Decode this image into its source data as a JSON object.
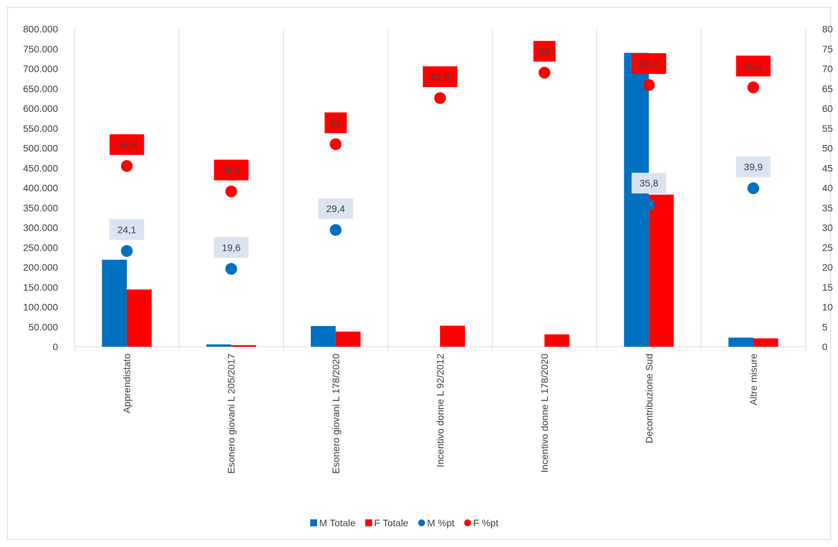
{
  "chart_data": {
    "type": "bar",
    "categories": [
      "Apprendistato",
      "Esonero giovani L 205/2017",
      "Esonero giovani L 178/2020",
      "Incentivo donne L 92/2012",
      "Incentivo donne L 178/2020",
      "Decontribuzione Sud",
      "Altre misure"
    ],
    "y_left": {
      "min": 0,
      "max": 800000,
      "step": 50000,
      "tick_labels": [
        "0",
        "50.000",
        "100.000",
        "150.000",
        "200.000",
        "250.000",
        "300.000",
        "350.000",
        "400.000",
        "450.000",
        "500.000",
        "550.000",
        "600.000",
        "650.000",
        "700.000",
        "750.000",
        "800.000"
      ]
    },
    "y_right": {
      "min": 0,
      "max": 80,
      "step": 5,
      "tick_labels": [
        "0",
        "5",
        "10",
        "15",
        "20",
        "25",
        "30",
        "35",
        "40",
        "45",
        "50",
        "55",
        "60",
        "65",
        "70",
        "75",
        "80"
      ]
    },
    "bar_series": [
      {
        "name": "M  Totale",
        "color": "#0070C0",
        "values": [
          219000,
          6000,
          52000,
          0,
          0,
          740000,
          23000
        ]
      },
      {
        "name": "F  Totale",
        "color": "#FF0000",
        "values": [
          144000,
          4000,
          38000,
          53000,
          31000,
          383000,
          21000
        ]
      }
    ],
    "point_series": [
      {
        "name": "M %pt",
        "color": "#0070C0",
        "label_bg": "#DAE3F0",
        "values": [
          24.1,
          19.6,
          29.4,
          null,
          null,
          35.8,
          39.9
        ],
        "labels": [
          "24,1",
          "19,6",
          "29,4",
          null,
          null,
          "35,8",
          "39,9"
        ]
      },
      {
        "name": "F %pt",
        "color": "#FF0000",
        "label_bg": "#FF0000",
        "values": [
          45.5,
          39.1,
          51,
          62.6,
          69,
          65.9,
          65.3
        ],
        "labels": [
          "45,5",
          "39,1",
          "51",
          "62,6",
          "69",
          "65,9",
          "65,3"
        ]
      }
    ],
    "legend": [
      "M  Totale",
      "F  Totale",
      "M %pt",
      "F %pt"
    ],
    "legend_position": "bottom",
    "vertical_gridlines": true,
    "horizontal_gridlines": false
  }
}
